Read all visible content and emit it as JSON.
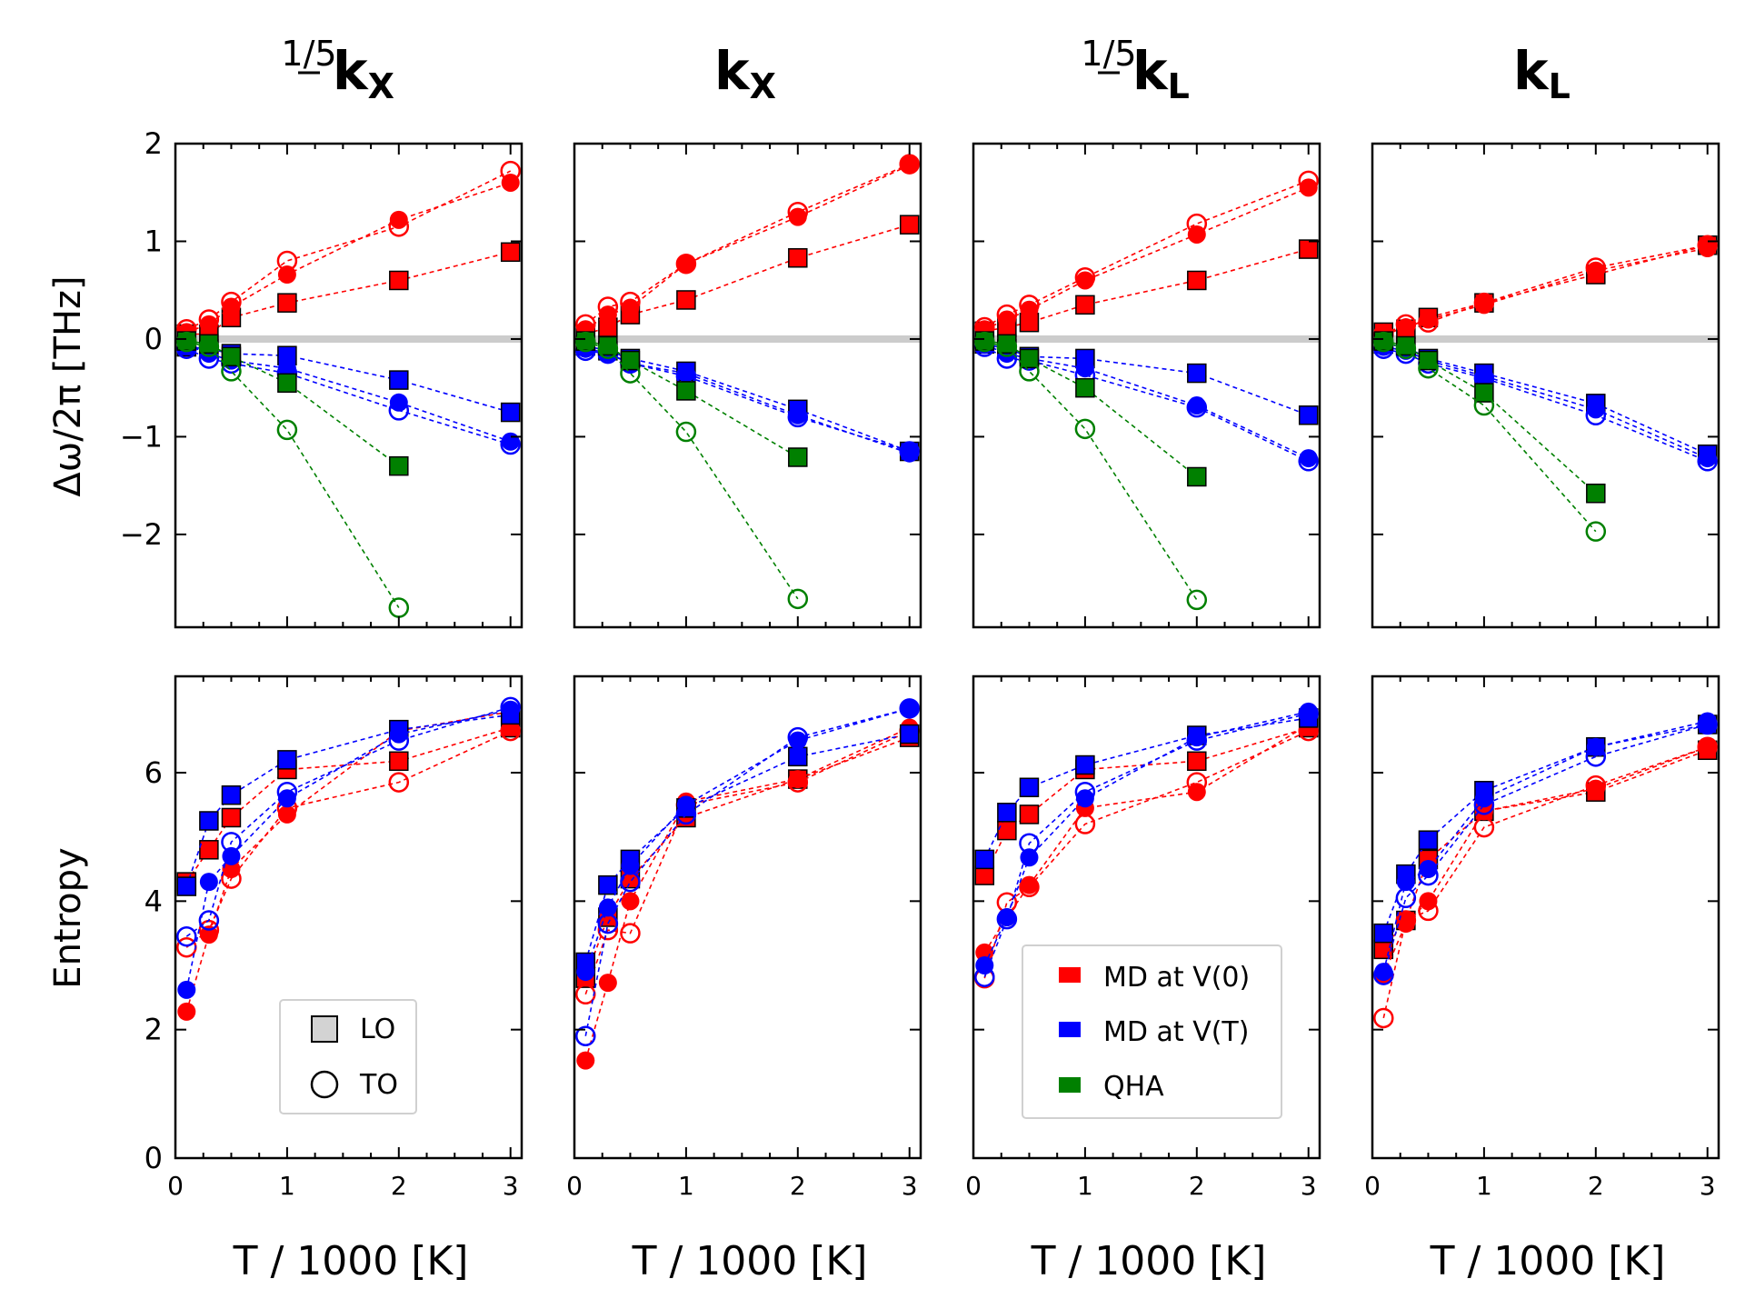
{
  "figure": {
    "ylabel_top": "Δω/2π [THz]",
    "ylabel_bottom": "Entropy",
    "xlabel": "T / 1000 [K]"
  },
  "columns": [
    {
      "title_prefix": "1/5",
      "title_main": "k",
      "title_sub": "X"
    },
    {
      "title_prefix": "",
      "title_main": "k",
      "title_sub": "X"
    },
    {
      "title_prefix": "1/5",
      "title_main": "k",
      "title_sub": "L"
    },
    {
      "title_prefix": "",
      "title_main": "k",
      "title_sub": "L"
    }
  ],
  "colors": {
    "v0": "#ff0000",
    "vt": "#0000ff",
    "qha": "#008000",
    "ref_line": "#cccccc"
  },
  "legend_markers": {
    "lo_label": "LO",
    "to_label": "TO"
  },
  "legend_methods": {
    "v0_label": "MD at V(0)",
    "vt_label": "MD at V(T)",
    "qha_label": "QHA"
  },
  "chart_data": [
    {
      "type": "scatter",
      "panel": "shift-1/5kX",
      "title": "1/5 kX",
      "xlabel": "",
      "ylabel": "Δω/2π [THz]",
      "xlim": [
        0,
        3.1
      ],
      "ylim": [
        -2.95,
        2.0
      ],
      "xticks": [
        0,
        1,
        2,
        3
      ],
      "yticks": [
        -2,
        -1,
        0,
        1,
        2
      ],
      "x": [
        0.1,
        0.3,
        0.5,
        1,
        2,
        3
      ],
      "series": [
        {
          "name": "MD at V(0) LO",
          "color": "v0",
          "marker": "square",
          "values": [
            0.05,
            0.05,
            0.22,
            0.37,
            0.6,
            0.89
          ]
        },
        {
          "name": "MD at V(0) TO",
          "color": "v0",
          "marker": "circle",
          "values": [
            0.1,
            0.2,
            0.38,
            0.8,
            1.15,
            1.72
          ]
        },
        {
          "name": "MD at V(0) TO2",
          "color": "v0",
          "marker": "dot",
          "values": [
            0.07,
            0.15,
            0.33,
            0.66,
            1.22,
            1.6
          ]
        },
        {
          "name": "MD at V(T) LO",
          "color": "vt",
          "marker": "square",
          "values": [
            -0.08,
            -0.1,
            -0.15,
            -0.17,
            -0.42,
            -0.75
          ]
        },
        {
          "name": "MD at V(T) TO",
          "color": "vt",
          "marker": "circle",
          "values": [
            -0.1,
            -0.2,
            -0.25,
            -0.35,
            -0.73,
            -1.08
          ]
        },
        {
          "name": "MD at V(T) TO2",
          "color": "vt",
          "marker": "dot",
          "values": [
            -0.06,
            -0.15,
            -0.22,
            -0.3,
            -0.65,
            -1.05
          ]
        },
        {
          "name": "QHA LO",
          "color": "qha",
          "marker": "square",
          "values": [
            -0.02,
            -0.05,
            -0.18,
            -0.45,
            -1.3,
            null
          ]
        },
        {
          "name": "QHA TO",
          "color": "qha",
          "marker": "circle",
          "values": [
            -0.03,
            -0.08,
            -0.33,
            -0.93,
            -2.75,
            null
          ]
        }
      ]
    },
    {
      "type": "scatter",
      "panel": "shift-kX",
      "title": "kX",
      "xlabel": "",
      "ylabel": "",
      "xlim": [
        0,
        3.1
      ],
      "ylim": [
        -2.95,
        2.0
      ],
      "xticks": [
        0,
        1,
        2,
        3
      ],
      "yticks": [
        -2,
        -1,
        0,
        1,
        2
      ],
      "x": [
        0.1,
        0.3,
        0.5,
        1,
        2,
        3
      ],
      "series": [
        {
          "name": "MD at V(0) LO",
          "color": "v0",
          "marker": "square",
          "values": [
            0.05,
            0.12,
            0.25,
            0.4,
            0.83,
            1.17
          ]
        },
        {
          "name": "MD at V(0) TO",
          "color": "v0",
          "marker": "circle",
          "values": [
            0.15,
            0.33,
            0.38,
            0.77,
            1.3,
            1.79
          ]
        },
        {
          "name": "MD at V(0) TO2",
          "color": "v0",
          "marker": "dot",
          "values": [
            0.1,
            0.25,
            0.32,
            0.77,
            1.25,
            1.78
          ]
        },
        {
          "name": "MD at V(T) LO",
          "color": "vt",
          "marker": "square",
          "values": [
            -0.07,
            -0.12,
            -0.2,
            -0.33,
            -0.72,
            -1.15
          ]
        },
        {
          "name": "MD at V(T) TO",
          "color": "vt",
          "marker": "circle",
          "values": [
            -0.12,
            -0.15,
            -0.25,
            -0.38,
            -0.8,
            -1.15
          ]
        },
        {
          "name": "MD at V(T) TO2",
          "color": "vt",
          "marker": "dot",
          "values": [
            -0.1,
            -0.14,
            -0.25,
            -0.35,
            -0.78,
            -1.17
          ]
        },
        {
          "name": "QHA LO",
          "color": "qha",
          "marker": "square",
          "values": [
            -0.02,
            -0.07,
            -0.22,
            -0.53,
            -1.21,
            null
          ]
        },
        {
          "name": "QHA TO",
          "color": "qha",
          "marker": "circle",
          "values": [
            -0.03,
            -0.1,
            -0.35,
            -0.95,
            -2.66,
            null
          ]
        }
      ]
    },
    {
      "type": "scatter",
      "panel": "shift-1/5kL",
      "title": "1/5 kL",
      "xlabel": "",
      "ylabel": "",
      "xlim": [
        0,
        3.1
      ],
      "ylim": [
        -2.95,
        2.0
      ],
      "xticks": [
        0,
        1,
        2,
        3
      ],
      "yticks": [
        -2,
        -1,
        0,
        1,
        2
      ],
      "x": [
        0.1,
        0.3,
        0.5,
        1,
        2,
        3
      ],
      "series": [
        {
          "name": "MD at V(0) LO",
          "color": "v0",
          "marker": "square",
          "values": [
            0.08,
            0.12,
            0.17,
            0.35,
            0.6,
            0.92
          ]
        },
        {
          "name": "MD at V(0) TO",
          "color": "v0",
          "marker": "circle",
          "values": [
            0.12,
            0.25,
            0.35,
            0.63,
            1.18,
            1.62
          ]
        },
        {
          "name": "MD at V(0) TO2",
          "color": "v0",
          "marker": "dot",
          "values": [
            0.1,
            0.2,
            0.3,
            0.6,
            1.07,
            1.55
          ]
        },
        {
          "name": "MD at V(T) LO",
          "color": "vt",
          "marker": "square",
          "values": [
            -0.05,
            -0.1,
            -0.18,
            -0.2,
            -0.35,
            -0.78
          ]
        },
        {
          "name": "MD at V(T) TO",
          "color": "vt",
          "marker": "circle",
          "values": [
            -0.08,
            -0.2,
            -0.22,
            -0.37,
            -0.7,
            -1.25
          ]
        },
        {
          "name": "MD at V(T) TO2",
          "color": "vt",
          "marker": "dot",
          "values": [
            -0.06,
            -0.15,
            -0.2,
            -0.3,
            -0.68,
            -1.22
          ]
        },
        {
          "name": "QHA LO",
          "color": "qha",
          "marker": "square",
          "values": [
            -0.02,
            -0.05,
            -0.2,
            -0.5,
            -1.41,
            null
          ]
        },
        {
          "name": "QHA TO",
          "color": "qha",
          "marker": "circle",
          "values": [
            -0.03,
            -0.08,
            -0.33,
            -0.92,
            -2.67,
            null
          ]
        }
      ]
    },
    {
      "type": "scatter",
      "panel": "shift-kL",
      "title": "kL",
      "xlabel": "",
      "ylabel": "",
      "xlim": [
        0,
        3.1
      ],
      "ylim": [
        -2.95,
        2.0
      ],
      "xticks": [
        0,
        1,
        2,
        3
      ],
      "yticks": [
        -2,
        -1,
        0,
        1,
        2
      ],
      "x": [
        0.1,
        0.3,
        0.5,
        1,
        2,
        3
      ],
      "series": [
        {
          "name": "MD at V(0) LO",
          "color": "v0",
          "marker": "square",
          "values": [
            0.07,
            0.1,
            0.22,
            0.37,
            0.66,
            0.96
          ]
        },
        {
          "name": "MD at V(0) TO",
          "color": "v0",
          "marker": "circle",
          "values": [
            0.05,
            0.15,
            0.17,
            0.37,
            0.73,
            0.96
          ]
        },
        {
          "name": "MD at V(0) TO2",
          "color": "v0",
          "marker": "dot",
          "values": [
            0.04,
            0.12,
            0.2,
            0.35,
            0.7,
            0.93
          ]
        },
        {
          "name": "MD at V(T) LO",
          "color": "vt",
          "marker": "square",
          "values": [
            -0.05,
            -0.08,
            -0.2,
            -0.35,
            -0.66,
            -1.18
          ]
        },
        {
          "name": "MD at V(T) TO",
          "color": "vt",
          "marker": "circle",
          "values": [
            -0.1,
            -0.15,
            -0.25,
            -0.4,
            -0.78,
            -1.25
          ]
        },
        {
          "name": "MD at V(T) TO2",
          "color": "vt",
          "marker": "dot",
          "values": [
            -0.08,
            -0.12,
            -0.22,
            -0.38,
            -0.72,
            -1.22
          ]
        },
        {
          "name": "QHA LO",
          "color": "qha",
          "marker": "square",
          "values": [
            -0.02,
            -0.07,
            -0.22,
            -0.55,
            -1.58,
            null
          ]
        },
        {
          "name": "QHA TO",
          "color": "qha",
          "marker": "circle",
          "values": [
            -0.03,
            -0.1,
            -0.3,
            -0.68,
            -1.97,
            null
          ]
        }
      ]
    },
    {
      "type": "scatter",
      "panel": "entropy-1/5kX",
      "title": "",
      "xlabel": "T / 1000 [K]",
      "ylabel": "Entropy",
      "xlim": [
        0,
        3.1
      ],
      "ylim": [
        0,
        7.5
      ],
      "xticks": [
        0,
        1,
        2,
        3
      ],
      "yticks": [
        0,
        2,
        4,
        6
      ],
      "x": [
        0.1,
        0.3,
        0.5,
        1,
        2,
        3
      ],
      "series": [
        {
          "name": "MD at V(0) LO",
          "color": "v0",
          "marker": "square",
          "values": [
            4.3,
            4.8,
            5.3,
            6.05,
            6.18,
            6.7
          ]
        },
        {
          "name": "MD at V(0) TO",
          "color": "v0",
          "marker": "circle",
          "values": [
            3.28,
            3.55,
            4.35,
            5.45,
            5.85,
            6.65
          ]
        },
        {
          "name": "MD at V(0) TO2",
          "color": "v0",
          "marker": "dot",
          "values": [
            2.28,
            3.48,
            4.5,
            5.35,
            6.65,
            6.95
          ]
        },
        {
          "name": "MD at V(T) LO",
          "color": "vt",
          "marker": "square",
          "values": [
            4.23,
            5.25,
            5.65,
            6.2,
            6.67,
            6.9
          ]
        },
        {
          "name": "MD at V(T) TO",
          "color": "vt",
          "marker": "circle",
          "values": [
            3.45,
            3.7,
            4.92,
            5.7,
            6.5,
            7.02
          ]
        },
        {
          "name": "MD at V(T) TO2",
          "color": "vt",
          "marker": "dot",
          "values": [
            2.62,
            4.3,
            4.7,
            5.6,
            6.6,
            6.98
          ]
        }
      ]
    },
    {
      "type": "scatter",
      "panel": "entropy-kX",
      "title": "",
      "xlabel": "T / 1000 [K]",
      "ylabel": "",
      "xlim": [
        0,
        3.1
      ],
      "ylim": [
        0,
        7.5
      ],
      "xticks": [
        0,
        1,
        2,
        3
      ],
      "yticks": [
        0,
        2,
        4,
        6
      ],
      "x": [
        0.1,
        0.3,
        0.5,
        1,
        2,
        3
      ],
      "series": [
        {
          "name": "MD at V(0) LO",
          "color": "v0",
          "marker": "square",
          "values": [
            2.8,
            3.75,
            4.35,
            5.3,
            5.9,
            6.55
          ]
        },
        {
          "name": "MD at V(0) TO",
          "color": "v0",
          "marker": "circle",
          "values": [
            2.55,
            3.55,
            3.5,
            5.5,
            5.85,
            6.65
          ]
        },
        {
          "name": "MD at V(0) TO2",
          "color": "v0",
          "marker": "dot",
          "values": [
            1.52,
            2.73,
            4.0,
            5.55,
            5.9,
            6.7
          ]
        },
        {
          "name": "MD at V(T) LO",
          "color": "vt",
          "marker": "square",
          "values": [
            3.05,
            4.25,
            4.65,
            5.45,
            6.25,
            6.6
          ]
        },
        {
          "name": "MD at V(T) TO",
          "color": "vt",
          "marker": "circle",
          "values": [
            1.9,
            3.65,
            4.3,
            5.35,
            6.55,
            7.0
          ]
        },
        {
          "name": "MD at V(T) TO2",
          "color": "vt",
          "marker": "dot",
          "values": [
            2.9,
            3.9,
            4.55,
            5.5,
            6.5,
            7.0
          ]
        }
      ]
    },
    {
      "type": "scatter",
      "panel": "entropy-1/5kL",
      "title": "",
      "xlabel": "T / 1000 [K]",
      "ylabel": "",
      "xlim": [
        0,
        3.1
      ],
      "ylim": [
        0,
        7.5
      ],
      "xticks": [
        0,
        1,
        2,
        3
      ],
      "yticks": [
        0,
        2,
        4,
        6
      ],
      "x": [
        0.1,
        0.3,
        0.5,
        1,
        2,
        3
      ],
      "series": [
        {
          "name": "MD at V(0) LO",
          "color": "v0",
          "marker": "square",
          "values": [
            4.4,
            5.1,
            5.35,
            6.05,
            6.18,
            6.7
          ]
        },
        {
          "name": "MD at V(0) TO",
          "color": "v0",
          "marker": "circle",
          "values": [
            2.8,
            3.98,
            4.22,
            5.2,
            5.85,
            6.65
          ]
        },
        {
          "name": "MD at V(0) TO2",
          "color": "v0",
          "marker": "dot",
          "values": [
            3.2,
            3.75,
            4.25,
            5.45,
            5.7,
            6.75
          ]
        },
        {
          "name": "MD at V(T) LO",
          "color": "vt",
          "marker": "square",
          "values": [
            4.65,
            5.38,
            5.77,
            6.12,
            6.58,
            6.85
          ]
        },
        {
          "name": "MD at V(T) TO",
          "color": "vt",
          "marker": "circle",
          "values": [
            2.82,
            3.72,
            4.9,
            5.7,
            6.5,
            6.92
          ]
        },
        {
          "name": "MD at V(T) TO2",
          "color": "vt",
          "marker": "dot",
          "values": [
            3.0,
            3.75,
            4.68,
            5.6,
            6.55,
            6.95
          ]
        }
      ]
    },
    {
      "type": "scatter",
      "panel": "entropy-kL",
      "title": "",
      "xlabel": "T / 1000 [K]",
      "ylabel": "",
      "xlim": [
        0,
        3.1
      ],
      "ylim": [
        0,
        7.5
      ],
      "xticks": [
        0,
        1,
        2,
        3
      ],
      "yticks": [
        0,
        2,
        4,
        6
      ],
      "x": [
        0.1,
        0.3,
        0.5,
        1,
        2,
        3
      ],
      "series": [
        {
          "name": "MD at V(0) LO",
          "color": "v0",
          "marker": "square",
          "values": [
            3.25,
            3.7,
            4.65,
            5.4,
            5.7,
            6.35
          ]
        },
        {
          "name": "MD at V(0) TO",
          "color": "v0",
          "marker": "circle",
          "values": [
            2.18,
            3.7,
            3.85,
            5.15,
            5.8,
            6.4
          ]
        },
        {
          "name": "MD at V(0) TO2",
          "color": "v0",
          "marker": "dot",
          "values": [
            2.85,
            3.65,
            4.0,
            5.4,
            5.75,
            6.4
          ]
        },
        {
          "name": "MD at V(T) LO",
          "color": "vt",
          "marker": "square",
          "values": [
            3.5,
            4.42,
            4.95,
            5.72,
            6.4,
            6.75
          ]
        },
        {
          "name": "MD at V(T) TO",
          "color": "vt",
          "marker": "circle",
          "values": [
            2.85,
            4.05,
            4.4,
            5.5,
            6.25,
            6.75
          ]
        },
        {
          "name": "MD at V(T) TO2",
          "color": "vt",
          "marker": "dot",
          "values": [
            2.9,
            4.3,
            4.5,
            5.6,
            6.4,
            6.8
          ]
        }
      ]
    }
  ]
}
